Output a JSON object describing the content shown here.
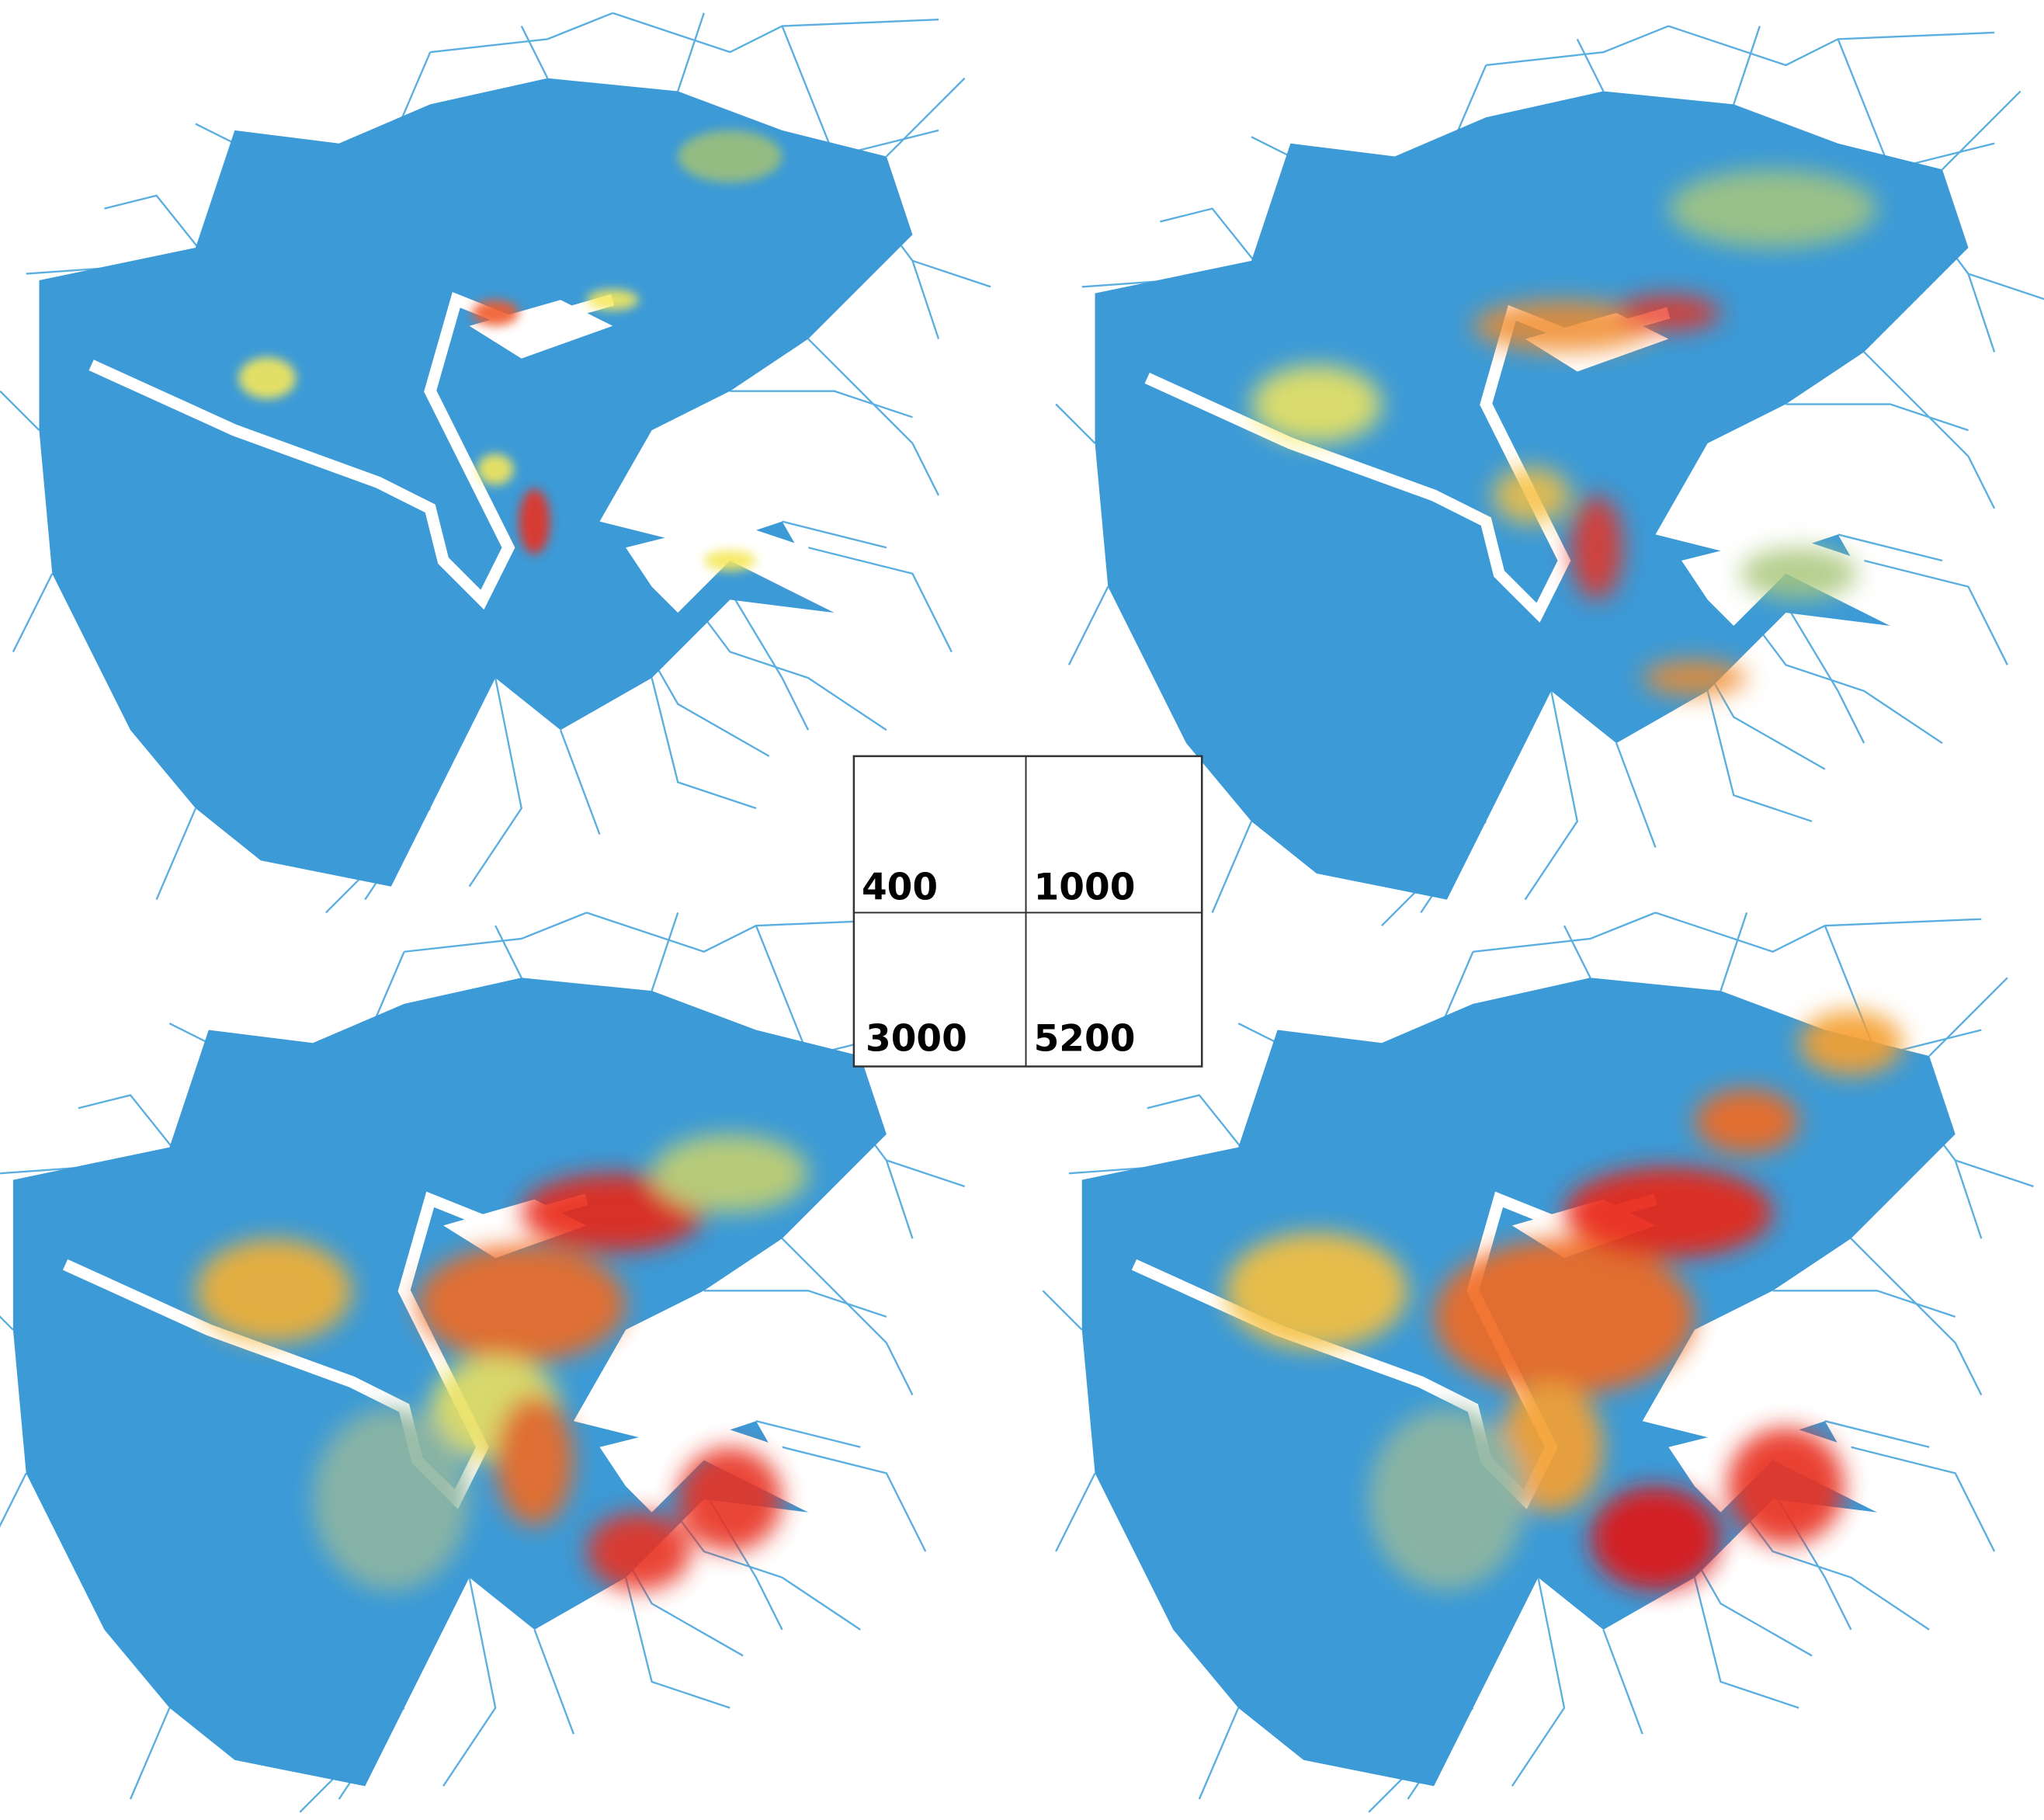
{
  "legend": {
    "cells": [
      "400",
      "1000",
      "3000",
      "5200"
    ]
  }
}
